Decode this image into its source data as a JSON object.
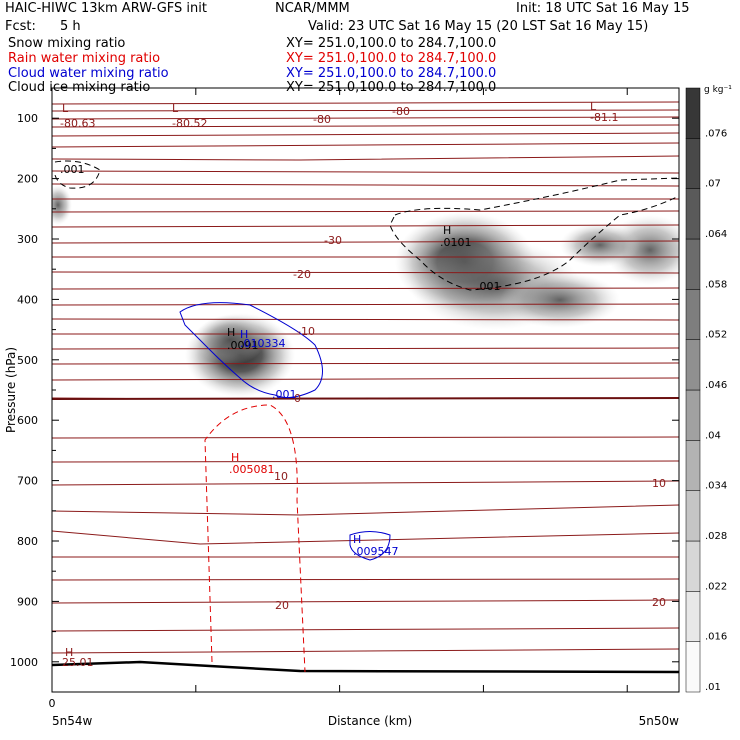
{
  "header": {
    "model": "HAIC-HIWC 13km ARW-GFS init",
    "org": "NCAR/MMM",
    "init": "Init: 18 UTC Sat 16 May 15",
    "fcst_label": "Fcst:",
    "fcst_value": "5 h",
    "valid": "Valid: 23 UTC Sat 16 May 15 (20 LST Sat 16 May 15)"
  },
  "fields": [
    {
      "label": "Snow mixing ratio",
      "xy": "XY= 251.0,100.0 to 284.7,100.0",
      "color": "#000000"
    },
    {
      "label": "Rain water mixing ratio",
      "xy": "XY= 251.0,100.0 to 284.7,100.0",
      "color": "#e00000"
    },
    {
      "label": "Cloud water mixing ratio",
      "xy": "XY= 251.0,100.0 to 284.7,100.0",
      "color": "#0000d0"
    },
    {
      "label": "Cloud ice mixing ratio",
      "xy": "XY= 251.0,100.0 to 284.7,100.0",
      "color": "#000000"
    }
  ],
  "chart_data": {
    "type": "heatmap",
    "ylabel": "Pressure (hPa)",
    "xlabel": "Distance (km)",
    "x_origin_label": "0",
    "x_left_label": "5n54w",
    "x_right_label": "5n50w",
    "ylim": [
      1050,
      50
    ],
    "yticks": [
      100,
      200,
      300,
      400,
      500,
      600,
      700,
      800,
      900,
      1000
    ],
    "colorbar": {
      "unit": "g kg⁻¹",
      "levels": [
        0.01,
        0.016,
        0.022,
        0.028,
        0.034,
        0.04,
        0.046,
        0.052,
        0.058,
        0.064,
        0.07,
        0.076
      ],
      "labels": [
        ".01",
        ".016",
        ".022",
        ".028",
        ".034",
        ".04",
        ".046",
        ".052",
        ".058",
        ".064",
        ".07",
        ".076"
      ]
    },
    "annotations": [
      {
        "text": "L",
        "color": "#8b1a1a"
      },
      {
        "text": "-80.63",
        "color": "#8b1a1a"
      },
      {
        "text": "L",
        "color": "#8b1a1a"
      },
      {
        "text": "-80.52",
        "color": "#8b1a1a"
      },
      {
        "text": "-80",
        "color": "#8b1a1a"
      },
      {
        "text": "-80",
        "color": "#8b1a1a"
      },
      {
        "text": "L",
        "color": "#8b1a1a"
      },
      {
        "text": "-81.1",
        "color": "#8b1a1a"
      },
      {
        "text": "-30",
        "color": "#8b1a1a"
      },
      {
        "text": "-20",
        "color": "#8b1a1a"
      },
      {
        "text": "-10",
        "color": "#8b1a1a"
      },
      {
        "text": "0",
        "color": "#8b1a1a"
      },
      {
        "text": "10",
        "color": "#8b1a1a"
      },
      {
        "text": "10",
        "color": "#8b1a1a"
      },
      {
        "text": "20",
        "color": "#8b1a1a"
      },
      {
        "text": "20",
        "color": "#8b1a1a"
      },
      {
        "text": "H",
        "color": "#8b1a1a"
      },
      {
        "text": "25.01",
        "color": "#8b1a1a"
      },
      {
        "text": ".001",
        "color": "#000000"
      },
      {
        "text": "H",
        "color": "#000000"
      },
      {
        "text": ".0101",
        "color": "#000000"
      },
      {
        "text": ".001",
        "color": "#000000"
      },
      {
        "text": "H",
        "color": "#000000"
      },
      {
        "text": ".0091",
        "color": "#000000"
      },
      {
        "text": "H",
        "color": "#0000d0"
      },
      {
        "text": ".010334",
        "color": "#0000d0"
      },
      {
        "text": ".001",
        "color": "#0000d0"
      },
      {
        "text": "H",
        "color": "#e00000"
      },
      {
        "text": ".005081",
        "color": "#e00000"
      },
      {
        "text": "H",
        "color": "#0000d0"
      },
      {
        "text": ".009547",
        "color": "#0000d0"
      }
    ]
  }
}
